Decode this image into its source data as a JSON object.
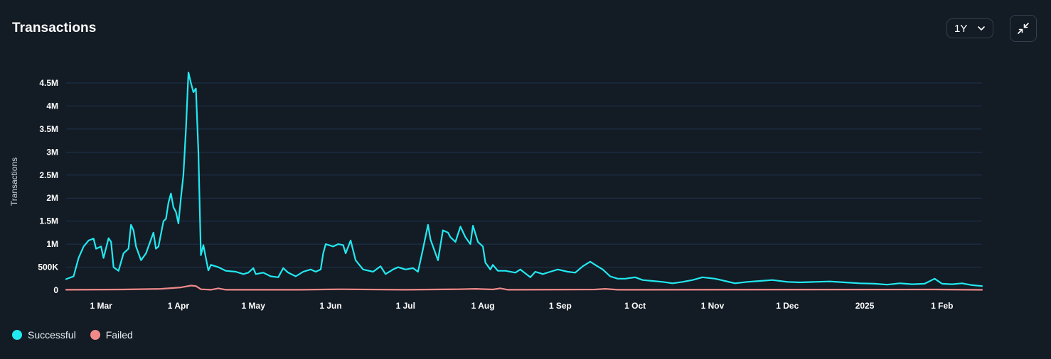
{
  "header": {
    "title": "Transactions",
    "range_value": "1Y"
  },
  "icons": {
    "range_chevron": "chevron-down-icon",
    "collapse": "collapse-arrows-icon"
  },
  "colors": {
    "successful": "#22e8f0",
    "failed": "#f08a8a",
    "grid": "#1e3550",
    "background": "#131b24"
  },
  "chart_data": {
    "type": "line",
    "ylabel": "Transactions",
    "ylim": [
      0,
      4700000
    ],
    "yticks": [
      {
        "value": 0,
        "label": "0"
      },
      {
        "value": 500000,
        "label": "500K"
      },
      {
        "value": 1000000,
        "label": "1M"
      },
      {
        "value": 1500000,
        "label": "1.5M"
      },
      {
        "value": 2000000,
        "label": "2M"
      },
      {
        "value": 2500000,
        "label": "2.5M"
      },
      {
        "value": 3000000,
        "label": "3M"
      },
      {
        "value": 3500000,
        "label": "3.5M"
      },
      {
        "value": 4000000,
        "label": "4M"
      },
      {
        "value": 4500000,
        "label": "4.5M"
      }
    ],
    "xlim": [
      "2024-02-16",
      "2025-02-17"
    ],
    "xticks": [
      {
        "date": "2024-03-01",
        "label": "1 Mar"
      },
      {
        "date": "2024-04-01",
        "label": "1 Apr"
      },
      {
        "date": "2024-05-01",
        "label": "1 May"
      },
      {
        "date": "2024-06-01",
        "label": "1 Jun"
      },
      {
        "date": "2024-07-01",
        "label": "1 Jul"
      },
      {
        "date": "2024-08-01",
        "label": "1 Aug"
      },
      {
        "date": "2024-09-01",
        "label": "1 Sep"
      },
      {
        "date": "2024-10-01",
        "label": "1 Oct"
      },
      {
        "date": "2024-11-01",
        "label": "1 Nov"
      },
      {
        "date": "2024-12-01",
        "label": "1 Dec"
      },
      {
        "date": "2025-01-01",
        "label": "2025"
      },
      {
        "date": "2025-02-01",
        "label": "1 Feb"
      }
    ],
    "grid": true,
    "legend_position": "bottom-left",
    "series": [
      {
        "name": "Successful",
        "points": [
          [
            "2024-02-16",
            240000
          ],
          [
            "2024-02-19",
            300000
          ],
          [
            "2024-02-21",
            700000
          ],
          [
            "2024-02-23",
            950000
          ],
          [
            "2024-02-25",
            1080000
          ],
          [
            "2024-02-27",
            1120000
          ],
          [
            "2024-02-28",
            900000
          ],
          [
            "2024-03-01",
            950000
          ],
          [
            "2024-03-02",
            700000
          ],
          [
            "2024-03-04",
            1130000
          ],
          [
            "2024-03-05",
            1050000
          ],
          [
            "2024-03-06",
            500000
          ],
          [
            "2024-03-08",
            420000
          ],
          [
            "2024-03-10",
            800000
          ],
          [
            "2024-03-12",
            900000
          ],
          [
            "2024-03-13",
            1420000
          ],
          [
            "2024-03-14",
            1300000
          ],
          [
            "2024-03-15",
            950000
          ],
          [
            "2024-03-17",
            650000
          ],
          [
            "2024-03-19",
            800000
          ],
          [
            "2024-03-21",
            1100000
          ],
          [
            "2024-03-22",
            1250000
          ],
          [
            "2024-03-23",
            900000
          ],
          [
            "2024-03-24",
            950000
          ],
          [
            "2024-03-26",
            1500000
          ],
          [
            "2024-03-27",
            1550000
          ],
          [
            "2024-03-28",
            1900000
          ],
          [
            "2024-03-29",
            2100000
          ],
          [
            "2024-03-30",
            1800000
          ],
          [
            "2024-03-31",
            1700000
          ],
          [
            "2024-04-01",
            1450000
          ],
          [
            "2024-04-02",
            2000000
          ],
          [
            "2024-04-03",
            2500000
          ],
          [
            "2024-04-04",
            3500000
          ],
          [
            "2024-04-05",
            4730000
          ],
          [
            "2024-04-06",
            4500000
          ],
          [
            "2024-04-07",
            4300000
          ],
          [
            "2024-04-08",
            4380000
          ],
          [
            "2024-04-09",
            3000000
          ],
          [
            "2024-04-10",
            760000
          ],
          [
            "2024-04-11",
            980000
          ],
          [
            "2024-04-12",
            700000
          ],
          [
            "2024-04-13",
            430000
          ],
          [
            "2024-04-14",
            550000
          ],
          [
            "2024-04-17",
            500000
          ],
          [
            "2024-04-20",
            420000
          ],
          [
            "2024-04-24",
            400000
          ],
          [
            "2024-04-27",
            350000
          ],
          [
            "2024-04-29",
            380000
          ],
          [
            "2024-05-01",
            480000
          ],
          [
            "2024-05-02",
            350000
          ],
          [
            "2024-05-05",
            380000
          ],
          [
            "2024-05-08",
            300000
          ],
          [
            "2024-05-11",
            280000
          ],
          [
            "2024-05-13",
            480000
          ],
          [
            "2024-05-15",
            380000
          ],
          [
            "2024-05-18",
            300000
          ],
          [
            "2024-05-21",
            400000
          ],
          [
            "2024-05-24",
            450000
          ],
          [
            "2024-05-26",
            400000
          ],
          [
            "2024-05-28",
            450000
          ],
          [
            "2024-05-29",
            800000
          ],
          [
            "2024-05-30",
            1000000
          ],
          [
            "2024-06-02",
            950000
          ],
          [
            "2024-06-04",
            1000000
          ],
          [
            "2024-06-06",
            980000
          ],
          [
            "2024-06-07",
            800000
          ],
          [
            "2024-06-09",
            1080000
          ],
          [
            "2024-06-11",
            650000
          ],
          [
            "2024-06-14",
            450000
          ],
          [
            "2024-06-18",
            400000
          ],
          [
            "2024-06-21",
            520000
          ],
          [
            "2024-06-23",
            350000
          ],
          [
            "2024-06-26",
            450000
          ],
          [
            "2024-06-28",
            500000
          ],
          [
            "2024-07-01",
            450000
          ],
          [
            "2024-07-04",
            480000
          ],
          [
            "2024-07-06",
            400000
          ],
          [
            "2024-07-08",
            900000
          ],
          [
            "2024-07-10",
            1420000
          ],
          [
            "2024-07-11",
            1100000
          ],
          [
            "2024-07-13",
            800000
          ],
          [
            "2024-07-14",
            650000
          ],
          [
            "2024-07-16",
            1300000
          ],
          [
            "2024-07-18",
            1250000
          ],
          [
            "2024-07-19",
            1150000
          ],
          [
            "2024-07-21",
            1050000
          ],
          [
            "2024-07-23",
            1380000
          ],
          [
            "2024-07-25",
            1150000
          ],
          [
            "2024-07-27",
            1000000
          ],
          [
            "2024-07-28",
            1400000
          ],
          [
            "2024-07-30",
            1050000
          ],
          [
            "2024-08-01",
            950000
          ],
          [
            "2024-08-02",
            600000
          ],
          [
            "2024-08-04",
            450000
          ],
          [
            "2024-08-05",
            550000
          ],
          [
            "2024-08-07",
            420000
          ],
          [
            "2024-08-10",
            420000
          ],
          [
            "2024-08-14",
            380000
          ],
          [
            "2024-08-16",
            450000
          ],
          [
            "2024-08-20",
            280000
          ],
          [
            "2024-08-22",
            400000
          ],
          [
            "2024-08-25",
            350000
          ],
          [
            "2024-08-28",
            400000
          ],
          [
            "2024-08-31",
            450000
          ],
          [
            "2024-09-04",
            400000
          ],
          [
            "2024-09-07",
            380000
          ],
          [
            "2024-09-10",
            520000
          ],
          [
            "2024-09-13",
            620000
          ],
          [
            "2024-09-15",
            550000
          ],
          [
            "2024-09-18",
            450000
          ],
          [
            "2024-09-21",
            300000
          ],
          [
            "2024-09-24",
            250000
          ],
          [
            "2024-09-27",
            250000
          ],
          [
            "2024-10-01",
            280000
          ],
          [
            "2024-10-04",
            220000
          ],
          [
            "2024-10-08",
            200000
          ],
          [
            "2024-10-12",
            180000
          ],
          [
            "2024-10-16",
            150000
          ],
          [
            "2024-10-20",
            180000
          ],
          [
            "2024-10-24",
            220000
          ],
          [
            "2024-10-28",
            280000
          ],
          [
            "2024-11-02",
            250000
          ],
          [
            "2024-11-06",
            200000
          ],
          [
            "2024-11-10",
            150000
          ],
          [
            "2024-11-15",
            180000
          ],
          [
            "2024-11-20",
            200000
          ],
          [
            "2024-11-25",
            220000
          ],
          [
            "2024-12-01",
            180000
          ],
          [
            "2024-12-06",
            170000
          ],
          [
            "2024-12-12",
            180000
          ],
          [
            "2024-12-18",
            190000
          ],
          [
            "2024-12-24",
            170000
          ],
          [
            "2024-12-30",
            150000
          ],
          [
            "2025-01-05",
            140000
          ],
          [
            "2025-01-10",
            120000
          ],
          [
            "2025-01-15",
            150000
          ],
          [
            "2025-01-20",
            130000
          ],
          [
            "2025-01-25",
            140000
          ],
          [
            "2025-01-29",
            250000
          ],
          [
            "2025-02-01",
            140000
          ],
          [
            "2025-02-05",
            130000
          ],
          [
            "2025-02-09",
            150000
          ],
          [
            "2025-02-13",
            110000
          ],
          [
            "2025-02-17",
            90000
          ]
        ]
      },
      {
        "name": "Failed",
        "points": [
          [
            "2024-02-16",
            10000
          ],
          [
            "2024-03-10",
            15000
          ],
          [
            "2024-03-25",
            30000
          ],
          [
            "2024-04-02",
            60000
          ],
          [
            "2024-04-06",
            100000
          ],
          [
            "2024-04-08",
            90000
          ],
          [
            "2024-04-10",
            20000
          ],
          [
            "2024-04-14",
            10000
          ],
          [
            "2024-04-17",
            40000
          ],
          [
            "2024-04-20",
            10000
          ],
          [
            "2024-05-20",
            10000
          ],
          [
            "2024-06-05",
            20000
          ],
          [
            "2024-07-01",
            10000
          ],
          [
            "2024-07-22",
            20000
          ],
          [
            "2024-07-29",
            30000
          ],
          [
            "2024-08-05",
            15000
          ],
          [
            "2024-08-08",
            40000
          ],
          [
            "2024-08-11",
            10000
          ],
          [
            "2024-09-15",
            15000
          ],
          [
            "2024-09-19",
            30000
          ],
          [
            "2024-09-24",
            10000
          ],
          [
            "2025-01-29",
            15000
          ],
          [
            "2025-02-17",
            8000
          ]
        ]
      }
    ]
  }
}
